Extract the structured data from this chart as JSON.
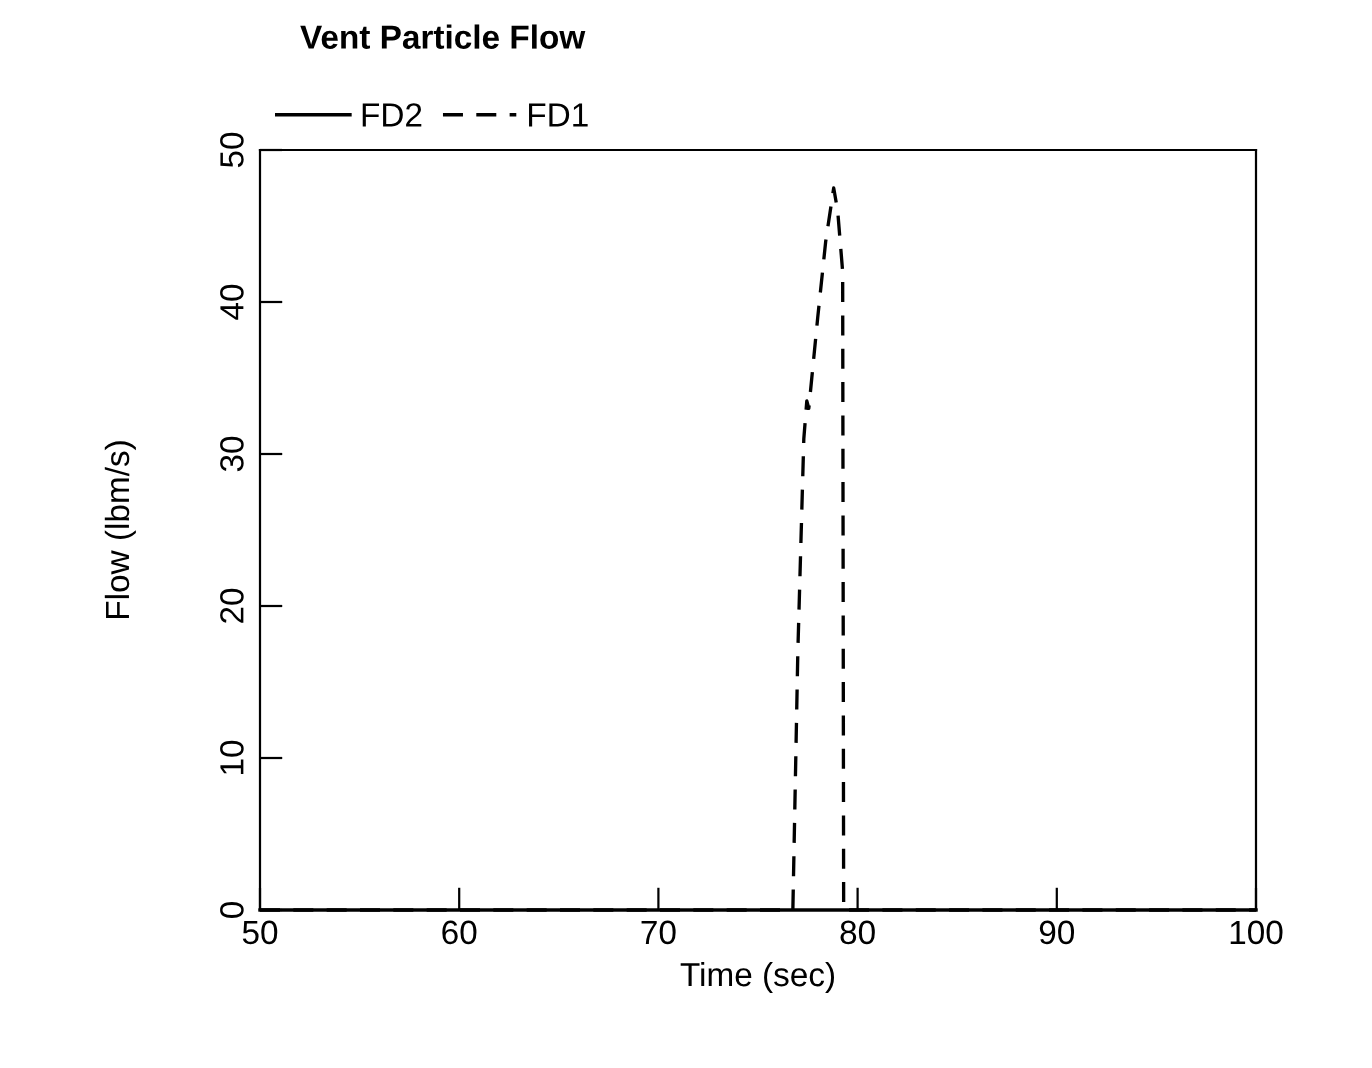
{
  "chart_data": {
    "type": "line",
    "title": "Vent Particle Flow",
    "xlabel": "Time (sec)",
    "ylabel": "Flow (lbm/s)",
    "xlim": [
      50,
      100
    ],
    "xticks": [
      50,
      60,
      70,
      80,
      90,
      100
    ],
    "ylim": [
      0,
      50
    ],
    "yticks": [
      0,
      10,
      20,
      30,
      40,
      50
    ],
    "grid": false,
    "legend": "top left",
    "marker": "none",
    "series": [
      {
        "name": "FD2",
        "color": "#000000",
        "line_style": "solid",
        "x": [
          50,
          100
        ],
        "values": [
          0,
          0
        ]
      },
      {
        "name": "FD1",
        "color": "#000000",
        "line_style": "dashed",
        "x": [
          50,
          76.75,
          77.0,
          77.3,
          77.45,
          77.55,
          77.7,
          78.0,
          78.4,
          78.8,
          79.0,
          79.25,
          79.3,
          100
        ],
        "values": [
          0,
          0,
          17,
          31,
          33.5,
          33,
          35,
          39,
          44,
          47.5,
          46,
          42,
          0,
          0
        ]
      }
    ]
  }
}
